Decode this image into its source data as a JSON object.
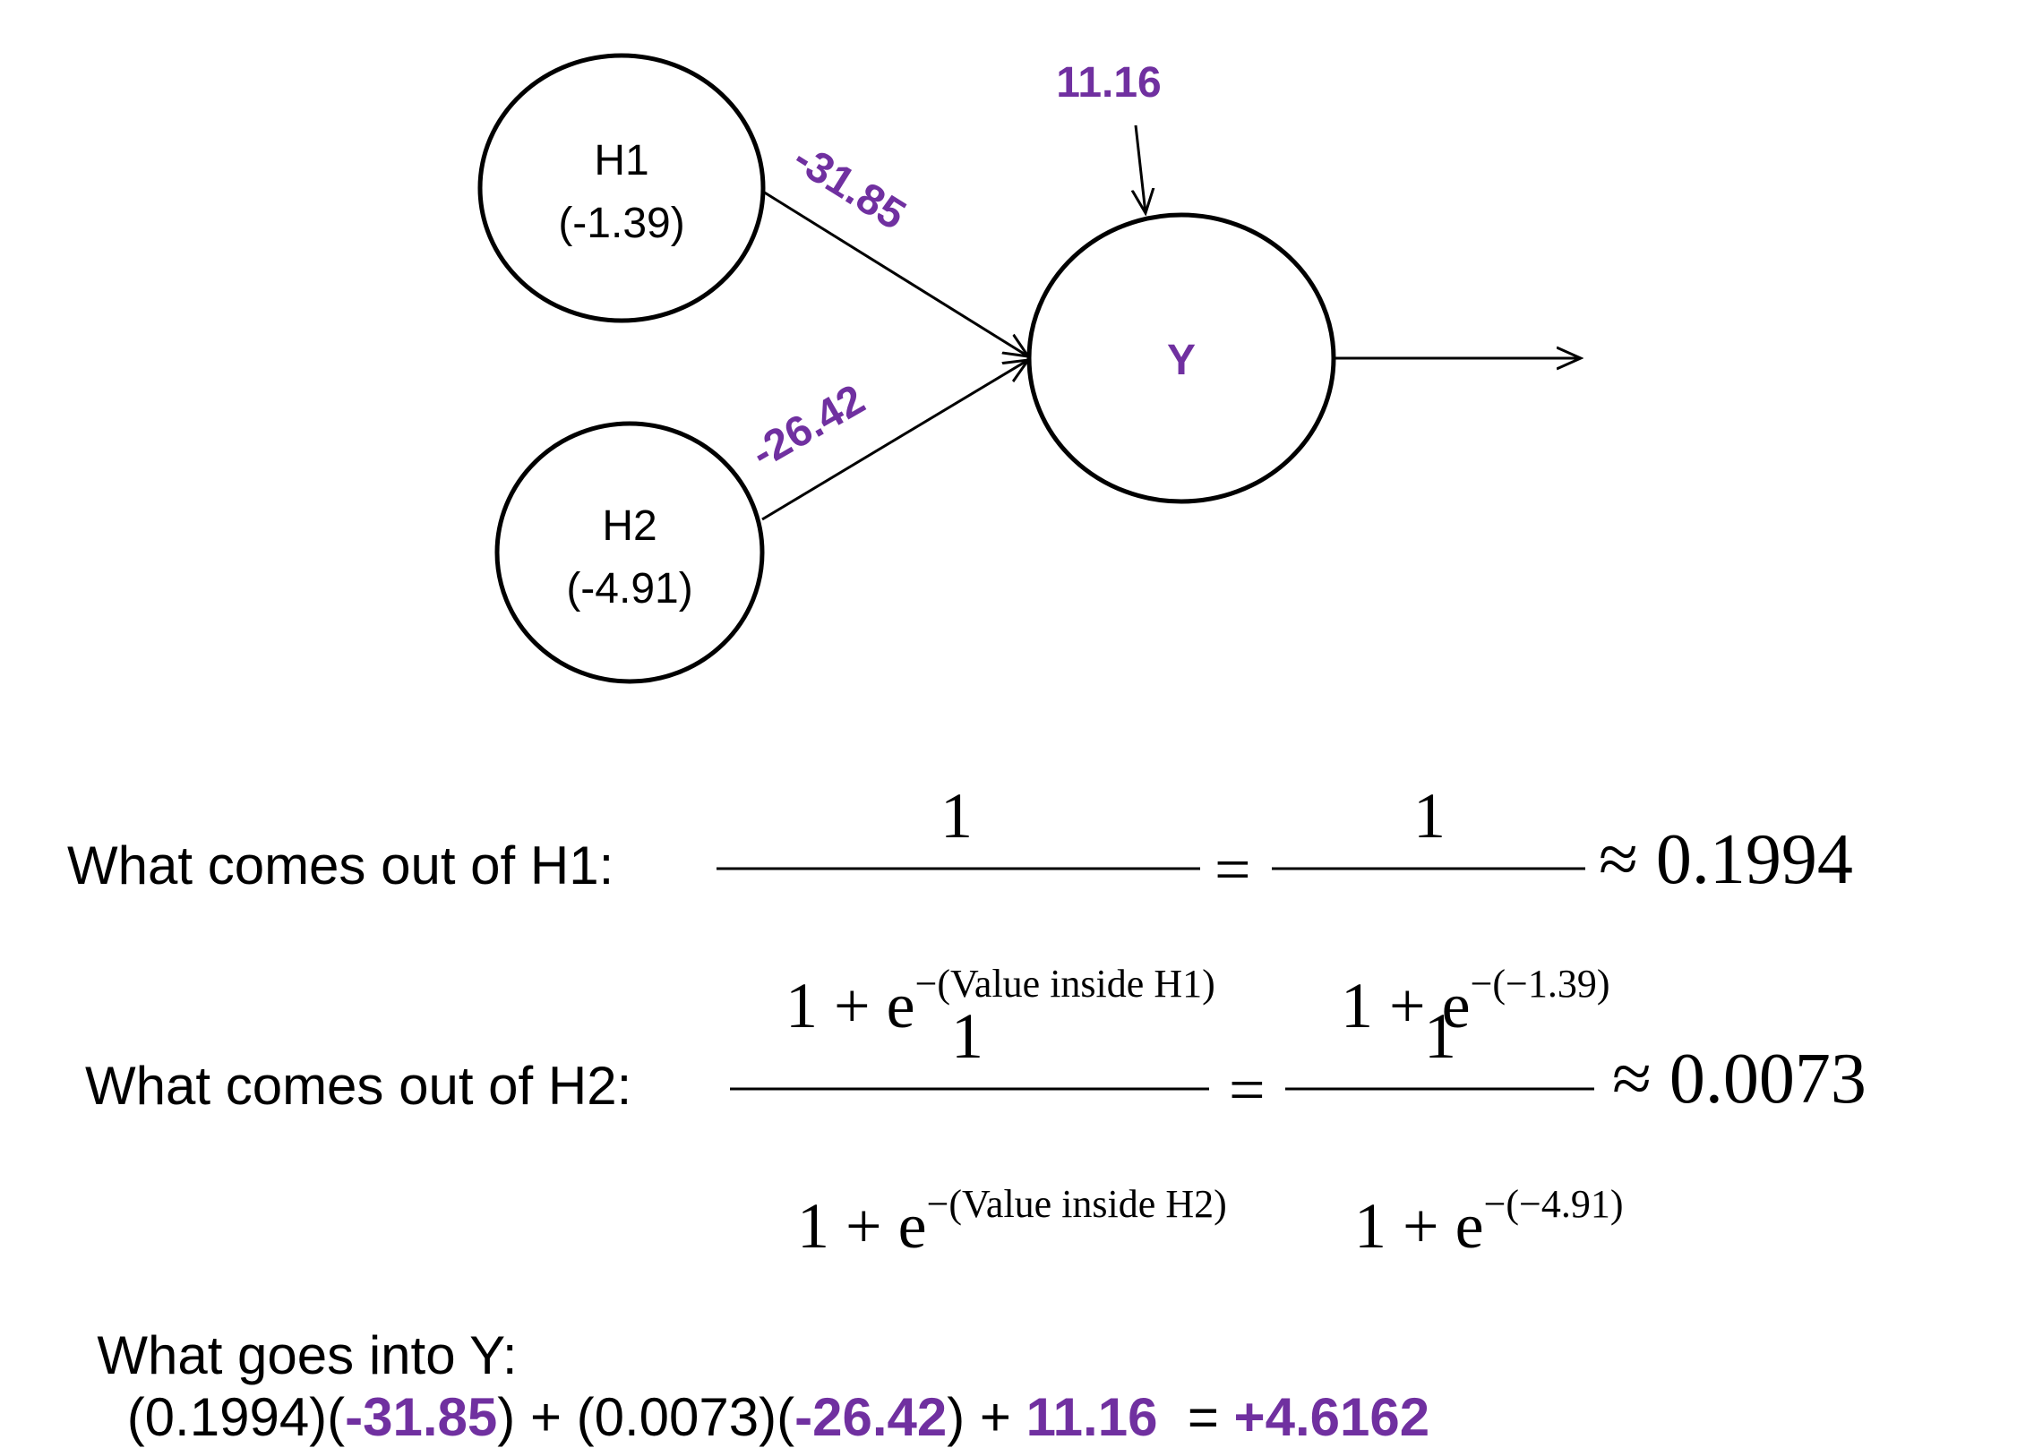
{
  "diagram": {
    "nodes": {
      "h1": {
        "name": "H1",
        "value": "(-1.39)"
      },
      "h2": {
        "name": "H2",
        "value": "(-4.91)"
      },
      "y": {
        "name": "Y"
      }
    },
    "weights": {
      "h1_to_y": "-31.85",
      "h2_to_y": "-26.42",
      "bias_y": "11.16"
    },
    "colors": {
      "accent": "#7030a0",
      "ink": "#000000"
    }
  },
  "equations": {
    "h1": {
      "label": "What comes out of H1:",
      "numerator": "1",
      "denom_base": "1 + e",
      "exp_generic": "−(Value inside H1)",
      "exp_value": "−(−1.39)",
      "equals": "=",
      "approx": "≈ 0.1994"
    },
    "h2": {
      "label": "What comes out of H2:",
      "numerator": "1",
      "denom_base": "1 + e",
      "exp_generic": "−(Value inside H2)",
      "exp_value": "−(−4.91)",
      "equals": "=",
      "approx": "≈ 0.0073"
    },
    "y": {
      "label": "What goes into Y:",
      "term1_a": "(0.1994)(",
      "term1_w": "-31.85",
      "term1_b": ") + (0.0073)(",
      "term2_w": "-26.42",
      "term2_b": ") + ",
      "bias": "11.16",
      "eq": "=",
      "result": "+4.6162"
    }
  }
}
